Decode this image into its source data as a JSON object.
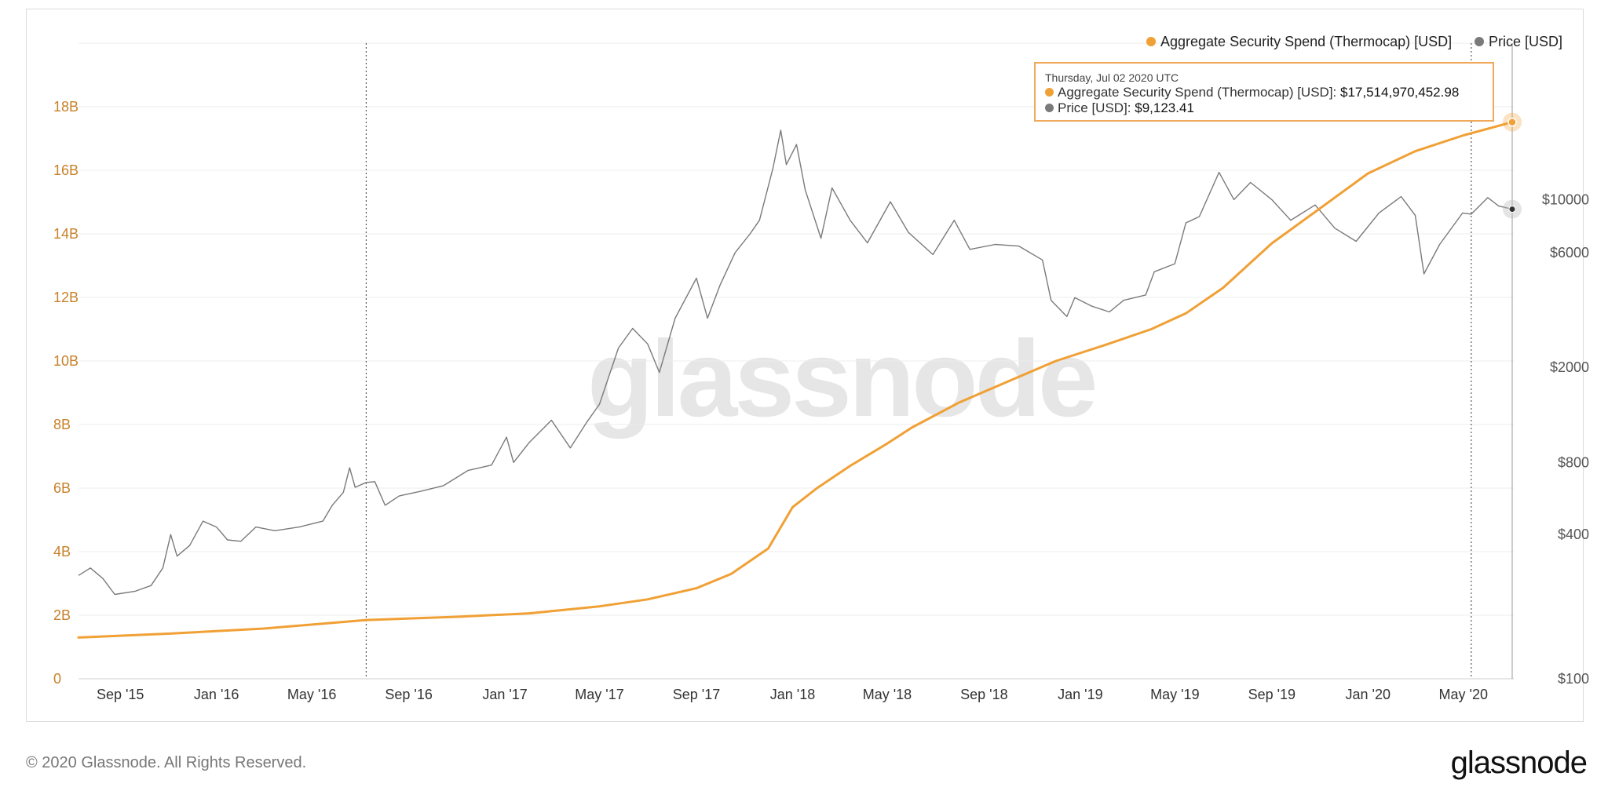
{
  "footer": {
    "copyright": "© 2020 Glassnode. All Rights Reserved.",
    "logo": "glassnode"
  },
  "watermark": "glassnode",
  "tooltip": {
    "date": "Thursday, Jul 02 2020 UTC",
    "series1_label": "Aggregate Security Spend (Thermocap) [USD]:",
    "series1_value": "$17,514,970,452.98",
    "series2_label": "Price [USD]:",
    "series2_value": "$9,123.41"
  },
  "colors": {
    "thermocap": "#f0a035",
    "price": "#7a7a7a",
    "grid": "#ececec",
    "left_axis_text": "#c8812a",
    "right_axis_text": "#555555"
  },
  "chart_data": {
    "type": "line",
    "title": "",
    "x_tick_labels": [
      "Sep '15",
      "Jan '16",
      "May '16",
      "Sep '16",
      "Jan '17",
      "May '17",
      "Sep '17",
      "Jan '18",
      "May '18",
      "Sep '18",
      "Jan '19",
      "May '19",
      "Sep '19",
      "Jan '20",
      "May '20"
    ],
    "x_tick_dates": [
      "2015-09-01",
      "2016-01-01",
      "2016-05-01",
      "2016-09-01",
      "2017-01-01",
      "2017-05-01",
      "2017-09-01",
      "2018-01-01",
      "2018-05-01",
      "2018-09-01",
      "2019-01-01",
      "2019-05-01",
      "2019-09-01",
      "2020-01-01",
      "2020-05-01"
    ],
    "x_range": [
      "2015-07-10",
      "2020-07-04"
    ],
    "left_axis": {
      "range": [
        0,
        20000000000
      ],
      "ticks": [
        0,
        2000000000,
        4000000000,
        6000000000,
        8000000000,
        10000000000,
        12000000000,
        14000000000,
        16000000000,
        18000000000
      ],
      "tick_labels": [
        "0",
        "2B",
        "4B",
        "6B",
        "8B",
        "10B",
        "12B",
        "14B",
        "16B",
        "18B"
      ]
    },
    "right_axis": {
      "scale": "log",
      "range": [
        100,
        45000
      ],
      "ticks": [
        100,
        400,
        800,
        2000,
        6000,
        10000
      ],
      "tick_labels": [
        "$100",
        "$400",
        "$800",
        "$2000",
        "$6000",
        "$10000"
      ]
    },
    "reference_lines": [
      "2016-07-09",
      "2020-05-11"
    ],
    "legend": [
      "Aggregate Security Spend (Thermocap) [USD]",
      "Price [USD]"
    ],
    "legend_position": "top-right",
    "series": [
      {
        "name": "Aggregate Security Spend (Thermocap) [USD]",
        "axis": "left",
        "points": [
          [
            "2015-07-10",
            1300000000
          ],
          [
            "2015-11-01",
            1420000000
          ],
          [
            "2016-03-01",
            1580000000
          ],
          [
            "2016-07-09",
            1850000000
          ],
          [
            "2016-11-01",
            1950000000
          ],
          [
            "2017-02-01",
            2060000000
          ],
          [
            "2017-05-01",
            2280000000
          ],
          [
            "2017-07-01",
            2500000000
          ],
          [
            "2017-09-01",
            2850000000
          ],
          [
            "2017-10-15",
            3300000000
          ],
          [
            "2017-12-01",
            4100000000
          ],
          [
            "2018-01-01",
            5400000000
          ],
          [
            "2018-02-01",
            6000000000
          ],
          [
            "2018-03-15",
            6700000000
          ],
          [
            "2018-05-01",
            7400000000
          ],
          [
            "2018-06-01",
            7900000000
          ],
          [
            "2018-08-01",
            8700000000
          ],
          [
            "2018-10-01",
            9350000000
          ],
          [
            "2018-12-01",
            10000000000
          ],
          [
            "2019-02-01",
            10500000000
          ],
          [
            "2019-04-01",
            11000000000
          ],
          [
            "2019-05-15",
            11500000000
          ],
          [
            "2019-07-01",
            12300000000
          ],
          [
            "2019-09-01",
            13700000000
          ],
          [
            "2019-11-01",
            14800000000
          ],
          [
            "2020-01-01",
            15900000000
          ],
          [
            "2020-03-01",
            16600000000
          ],
          [
            "2020-05-01",
            17100000000
          ],
          [
            "2020-07-02",
            17514970452
          ]
        ]
      },
      {
        "name": "Price [USD]",
        "axis": "right",
        "points": [
          [
            "2015-07-10",
            270
          ],
          [
            "2015-07-25",
            290
          ],
          [
            "2015-08-10",
            262
          ],
          [
            "2015-08-25",
            225
          ],
          [
            "2015-09-20",
            232
          ],
          [
            "2015-10-10",
            245
          ],
          [
            "2015-10-25",
            290
          ],
          [
            "2015-11-04",
            400
          ],
          [
            "2015-11-12",
            325
          ],
          [
            "2015-11-28",
            360
          ],
          [
            "2015-12-15",
            455
          ],
          [
            "2016-01-01",
            430
          ],
          [
            "2016-01-15",
            380
          ],
          [
            "2016-02-01",
            375
          ],
          [
            "2016-02-20",
            430
          ],
          [
            "2016-03-15",
            415
          ],
          [
            "2016-04-15",
            430
          ],
          [
            "2016-05-15",
            455
          ],
          [
            "2016-05-27",
            530
          ],
          [
            "2016-06-10",
            600
          ],
          [
            "2016-06-18",
            760
          ],
          [
            "2016-06-25",
            630
          ],
          [
            "2016-07-09",
            660
          ],
          [
            "2016-07-20",
            665
          ],
          [
            "2016-08-02",
            530
          ],
          [
            "2016-08-20",
            580
          ],
          [
            "2016-09-15",
            605
          ],
          [
            "2016-10-15",
            640
          ],
          [
            "2016-11-15",
            740
          ],
          [
            "2016-12-15",
            780
          ],
          [
            "2017-01-03",
            1020
          ],
          [
            "2017-01-12",
            800
          ],
          [
            "2017-02-01",
            970
          ],
          [
            "2017-03-01",
            1200
          ],
          [
            "2017-03-25",
            920
          ],
          [
            "2017-04-15",
            1180
          ],
          [
            "2017-05-01",
            1400
          ],
          [
            "2017-05-25",
            2400
          ],
          [
            "2017-06-12",
            2900
          ],
          [
            "2017-07-01",
            2500
          ],
          [
            "2017-07-16",
            1900
          ],
          [
            "2017-08-05",
            3200
          ],
          [
            "2017-09-01",
            4700
          ],
          [
            "2017-09-15",
            3200
          ],
          [
            "2017-10-01",
            4400
          ],
          [
            "2017-10-20",
            6000
          ],
          [
            "2017-11-08",
            7200
          ],
          [
            "2017-11-20",
            8200
          ],
          [
            "2017-12-07",
            13500
          ],
          [
            "2017-12-17",
            19500
          ],
          [
            "2017-12-24",
            14000
          ],
          [
            "2018-01-06",
            17000
          ],
          [
            "2018-01-17",
            11000
          ],
          [
            "2018-02-06",
            6900
          ],
          [
            "2018-02-20",
            11200
          ],
          [
            "2018-03-15",
            8200
          ],
          [
            "2018-04-06",
            6600
          ],
          [
            "2018-05-05",
            9800
          ],
          [
            "2018-05-28",
            7300
          ],
          [
            "2018-06-28",
            5900
          ],
          [
            "2018-07-25",
            8200
          ],
          [
            "2018-08-14",
            6200
          ],
          [
            "2018-09-15",
            6500
          ],
          [
            "2018-10-15",
            6400
          ],
          [
            "2018-11-14",
            5600
          ],
          [
            "2018-11-25",
            3800
          ],
          [
            "2018-12-15",
            3250
          ],
          [
            "2018-12-25",
            3900
          ],
          [
            "2019-01-15",
            3600
          ],
          [
            "2019-02-07",
            3400
          ],
          [
            "2019-02-25",
            3800
          ],
          [
            "2019-03-25",
            4000
          ],
          [
            "2019-04-05",
            5000
          ],
          [
            "2019-05-01",
            5400
          ],
          [
            "2019-05-15",
            8000
          ],
          [
            "2019-06-01",
            8500
          ],
          [
            "2019-06-26",
            13000
          ],
          [
            "2019-07-15",
            10000
          ],
          [
            "2019-08-05",
            11800
          ],
          [
            "2019-09-01",
            10000
          ],
          [
            "2019-09-25",
            8200
          ],
          [
            "2019-10-26",
            9500
          ],
          [
            "2019-11-20",
            7600
          ],
          [
            "2019-12-17",
            6700
          ],
          [
            "2020-01-15",
            8800
          ],
          [
            "2020-02-12",
            10300
          ],
          [
            "2020-03-01",
            8600
          ],
          [
            "2020-03-12",
            4900
          ],
          [
            "2020-04-01",
            6500
          ],
          [
            "2020-04-30",
            8800
          ],
          [
            "2020-05-11",
            8700
          ],
          [
            "2020-06-01",
            10200
          ],
          [
            "2020-06-15",
            9400
          ],
          [
            "2020-07-02",
            9123.41
          ]
        ]
      }
    ]
  }
}
